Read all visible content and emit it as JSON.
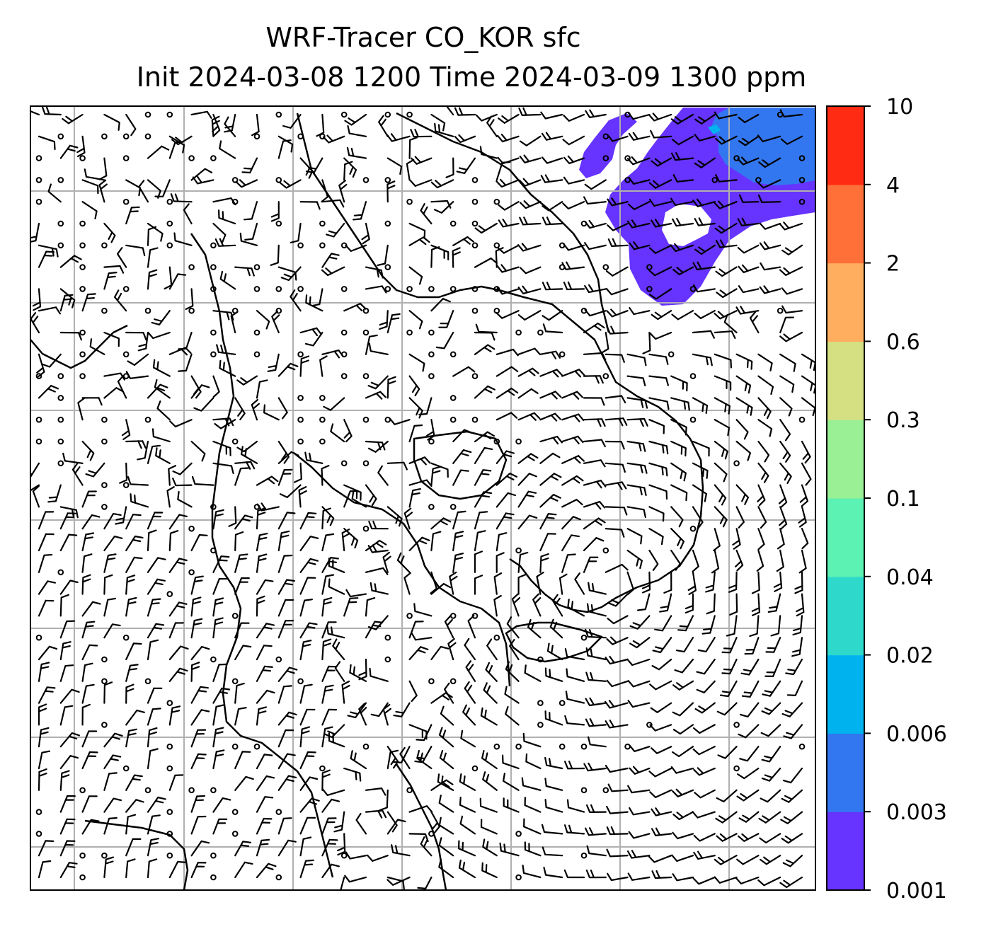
{
  "title": {
    "line1": "WRF-Tracer CO_KOR sfc",
    "line2": "Init 2024-03-08 1200 Time 2024-03-09 1300 ppm"
  },
  "map": {
    "variable": "CO_KOR",
    "level": "sfc",
    "units": "ppm",
    "init_time": "2024-03-08 1200",
    "valid_time": "2024-03-09 1300",
    "gridlines": true,
    "wind_barbs": true,
    "coastlines": true,
    "plume_location": "top-right"
  },
  "colorbar": {
    "levels": [
      "0.001",
      "0.003",
      "0.006",
      "0.02",
      "0.04",
      "0.1",
      "0.3",
      "0.6",
      "2",
      "4",
      "10"
    ],
    "colors": [
      "#6633ff",
      "#3377f0",
      "#00b3ee",
      "#2ed9cc",
      "#5bf2b3",
      "#99f095",
      "#d4e082",
      "#ffad5e",
      "#ff7038",
      "#ff2b12"
    ],
    "orientation": "vertical",
    "placement": "right"
  },
  "styles": {
    "barb_color": "#000000",
    "grid_color": "#b0b0b0",
    "coast_color": "#000000",
    "plume_main": "#6633ff",
    "plume_core": "#3377f0",
    "plume_peak": "#00b3ee"
  }
}
